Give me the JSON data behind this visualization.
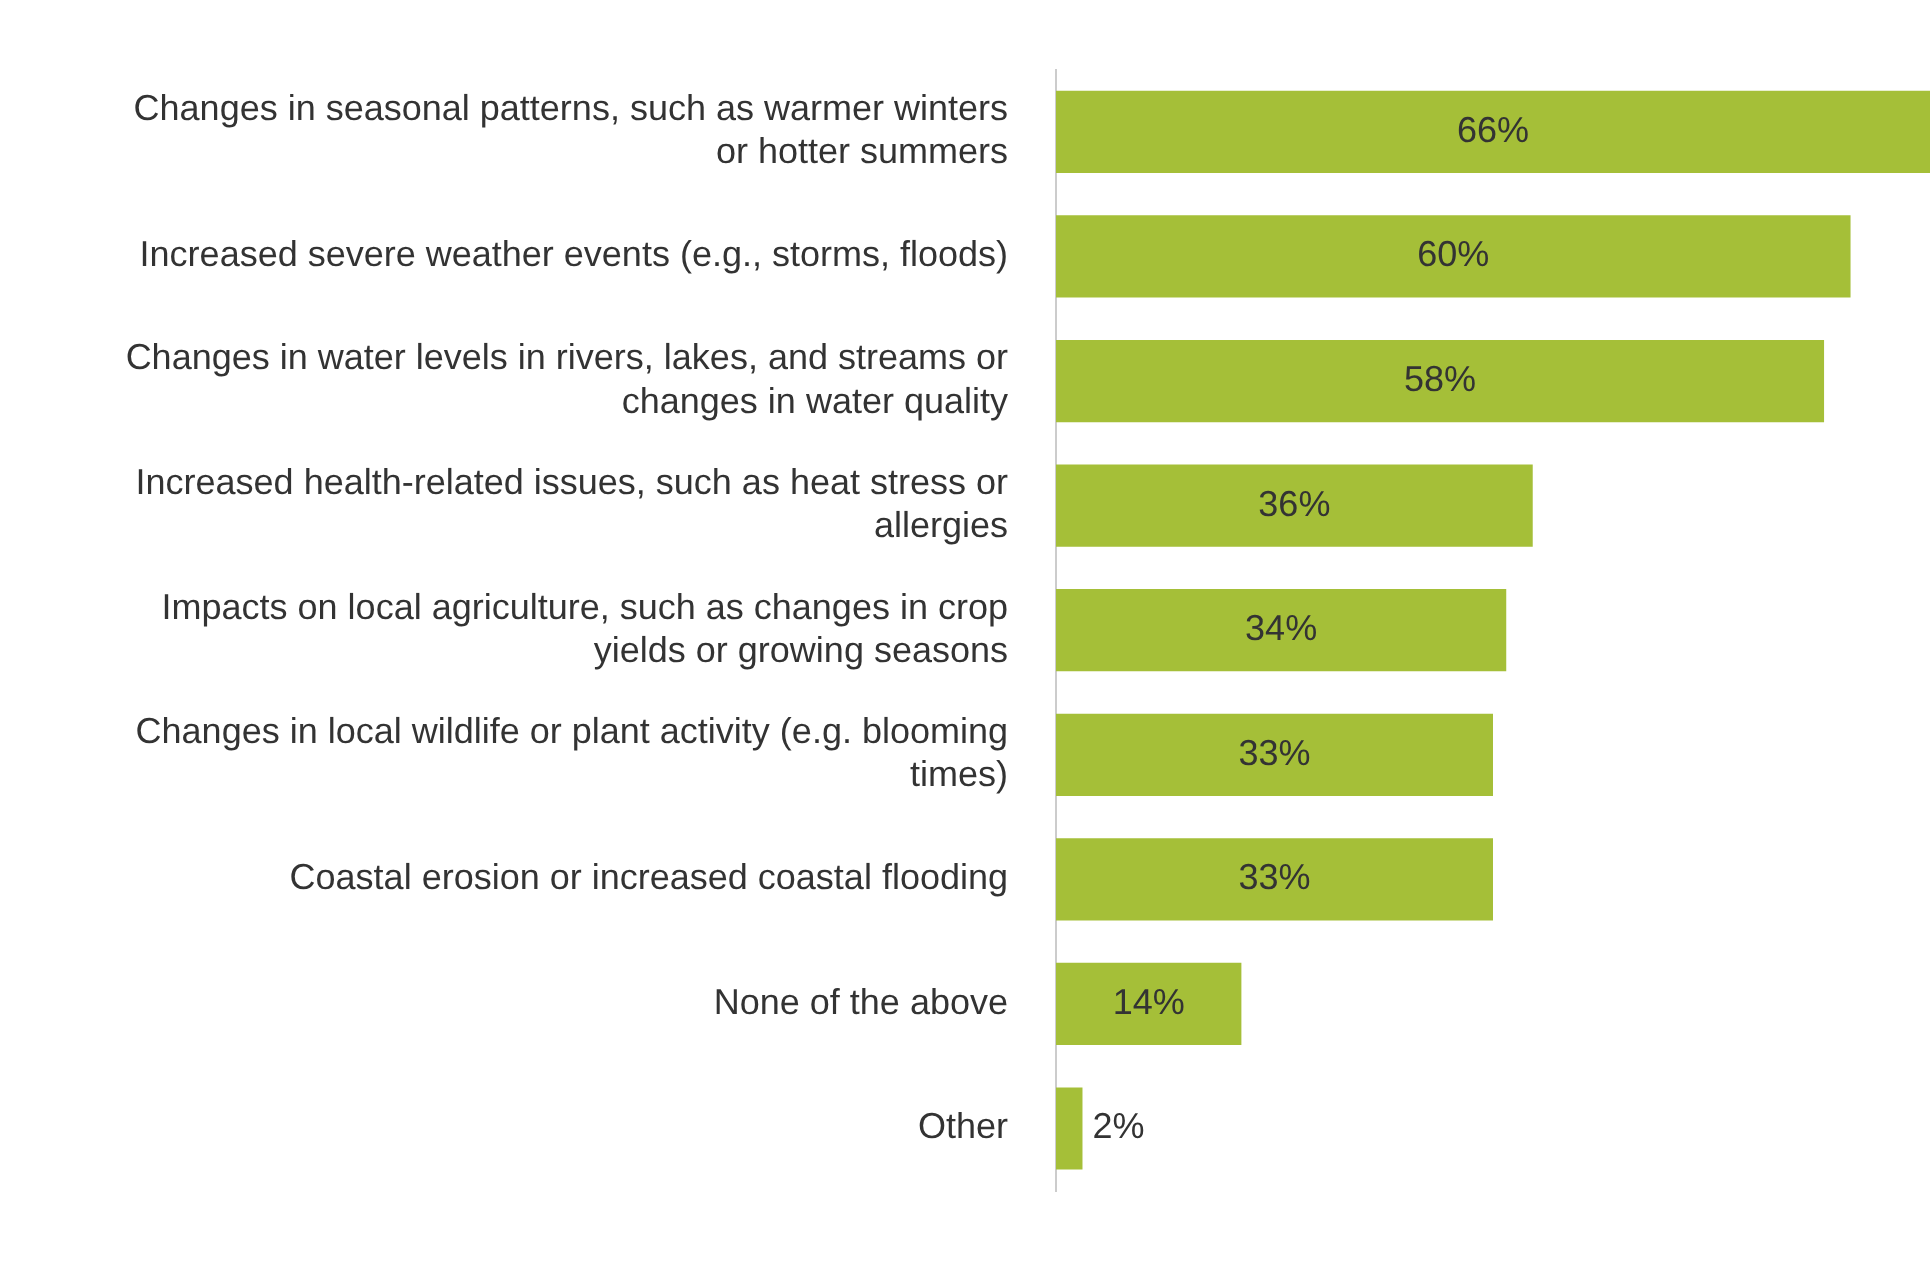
{
  "chart_data": {
    "type": "bar",
    "orientation": "horizontal",
    "categories": [
      "Changes in seasonal patterns, such as warmer winters or hotter summers",
      "Increased severe weather events (e.g., storms, floods)",
      "Changes in water levels in rivers, lakes, and streams or changes in water quality",
      "Increased health-related issues, such as heat stress or allergies",
      "Impacts on local agriculture, such as changes in crop yields or growing seasons",
      "Changes in local wildlife or plant activity (e.g. blooming times)",
      "Coastal erosion or increased coastal flooding",
      "None of the above",
      "Other"
    ],
    "values": [
      66,
      60,
      58,
      36,
      34,
      33,
      33,
      14,
      2
    ],
    "value_labels": [
      "66%",
      "60%",
      "58%",
      "36%",
      "34%",
      "33%",
      "33%",
      "14%",
      "2%"
    ],
    "color": "#a5bf38",
    "legend": false,
    "tick_labels": "y"
  }
}
